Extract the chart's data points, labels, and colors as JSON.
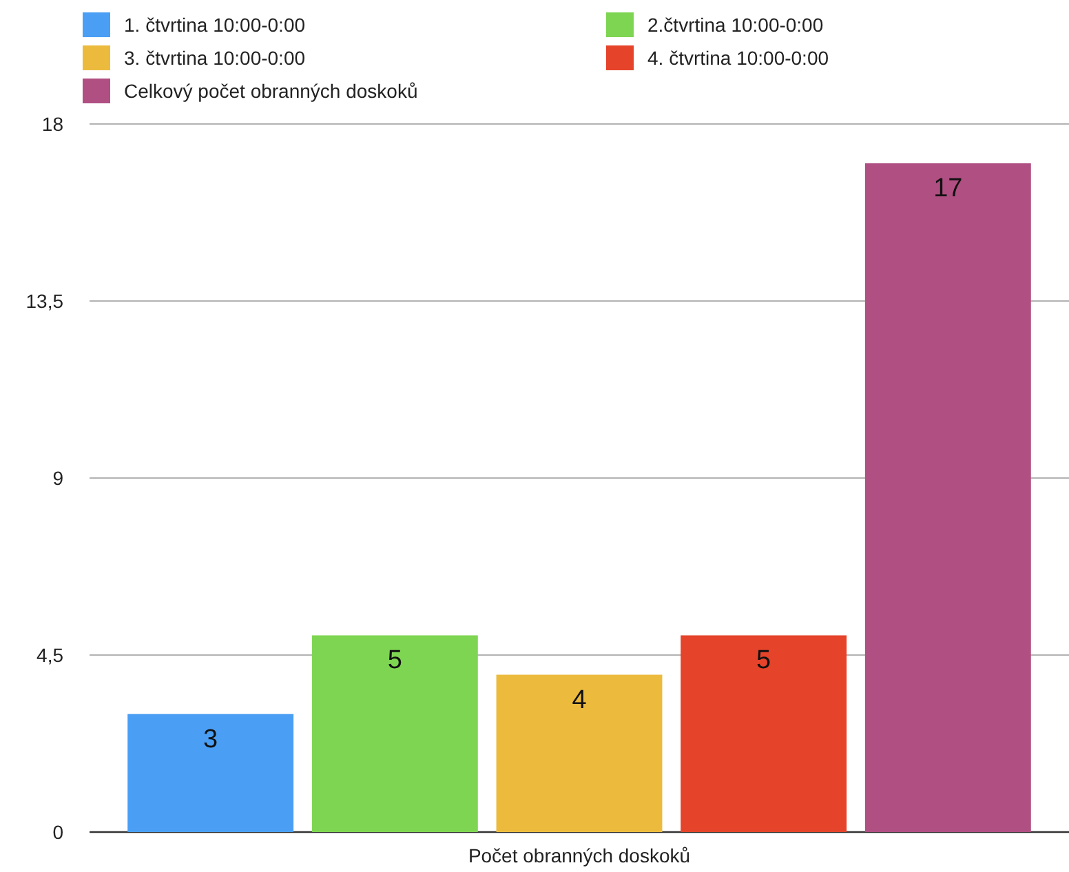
{
  "chart_data": {
    "type": "bar",
    "categories": [
      "Počet obranných doskoků"
    ],
    "series": [
      {
        "name": "1. čtvrtina 10:00-0:00",
        "color": "#4a9ff5",
        "values": [
          3
        ]
      },
      {
        "name": "2.čtvrtina 10:00-0:00",
        "color": "#7ed552",
        "values": [
          5
        ]
      },
      {
        "name": "3. čtvrtina 10:00-0:00",
        "color": "#ecbb3e",
        "values": [
          4
        ]
      },
      {
        "name": "4. čtvrtina 10:00-0:00",
        "color": "#e5432a",
        "values": [
          5
        ]
      },
      {
        "name": "Celkový počet obranných doskoků",
        "color": "#b04f82",
        "values": [
          17
        ]
      }
    ],
    "ylim": [
      0,
      18
    ],
    "yticks": [
      0,
      {
        "value": 4.5,
        "label": "4,5"
      },
      9,
      {
        "value": 13.5,
        "label": "13,5"
      },
      18
    ],
    "grid": "y",
    "legend": "top",
    "data_labels": true
  }
}
